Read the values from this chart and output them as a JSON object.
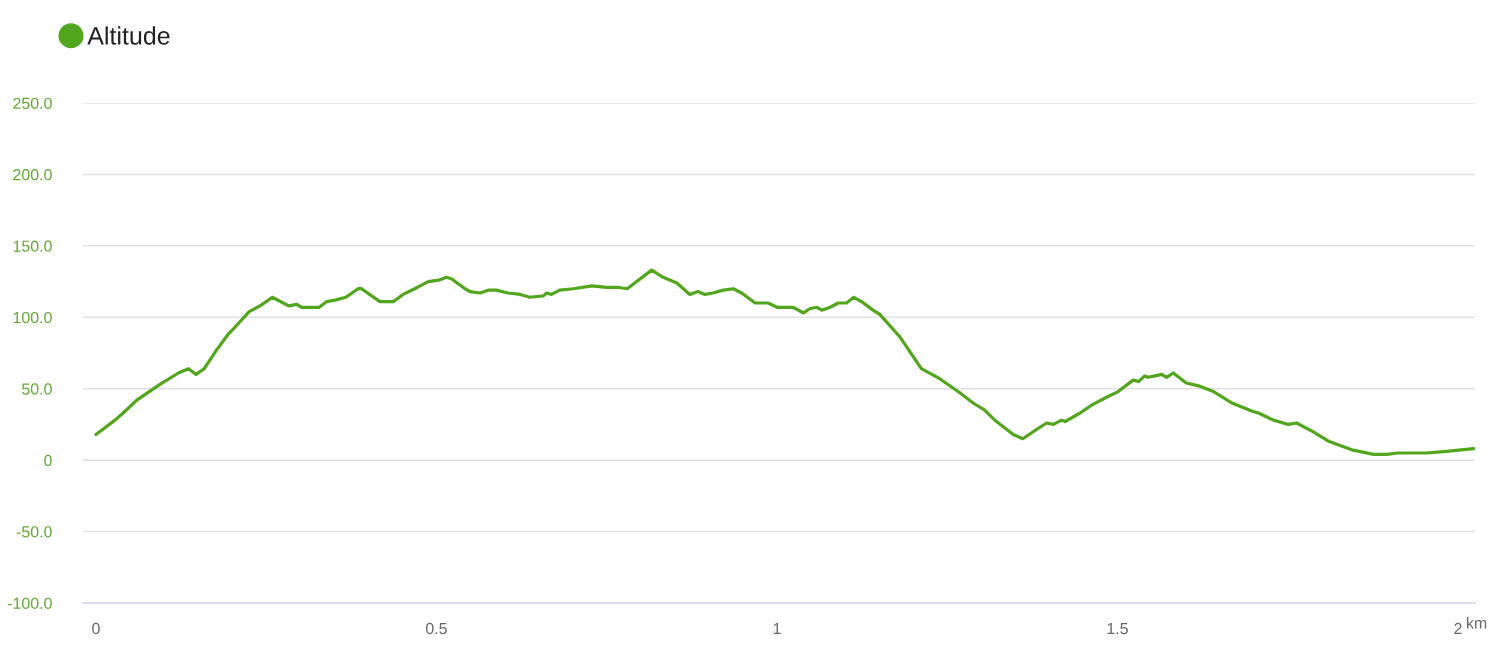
{
  "chart_data": {
    "type": "line",
    "xlabel": "km",
    "x": [
      0.0,
      0.028,
      0.04,
      0.06,
      0.094,
      0.121,
      0.136,
      0.147,
      0.159,
      0.177,
      0.194,
      0.204,
      0.225,
      0.241,
      0.259,
      0.283,
      0.295,
      0.302,
      0.315,
      0.328,
      0.339,
      0.351,
      0.367,
      0.385,
      0.39,
      0.417,
      0.437,
      0.451,
      0.468,
      0.488,
      0.503,
      0.515,
      0.522,
      0.539,
      0.549,
      0.564,
      0.576,
      0.588,
      0.605,
      0.623,
      0.637,
      0.657,
      0.662,
      0.669,
      0.681,
      0.701,
      0.728,
      0.75,
      0.765,
      0.78,
      0.816,
      0.833,
      0.853,
      0.872,
      0.884,
      0.894,
      0.906,
      0.921,
      0.936,
      0.948,
      0.968,
      0.987,
      1.0,
      1.024,
      1.039,
      1.048,
      1.058,
      1.066,
      1.078,
      1.09,
      1.102,
      1.113,
      1.124,
      1.141,
      1.151,
      1.181,
      1.212,
      1.239,
      1.269,
      1.288,
      1.305,
      1.32,
      1.347,
      1.361,
      1.386,
      1.396,
      1.406,
      1.418,
      1.423,
      1.445,
      1.464,
      1.484,
      1.501,
      1.523,
      1.531,
      1.54,
      1.545,
      1.555,
      1.565,
      1.572,
      1.582,
      1.601,
      1.619,
      1.641,
      1.668,
      1.699,
      1.707,
      1.729,
      1.751,
      1.763,
      1.787,
      1.811,
      1.846,
      1.876,
      1.895,
      1.912,
      1.954,
      1.979,
      2.023
    ],
    "series": [
      {
        "name": "Altitude",
        "color": "#52a61e",
        "values": [
          18,
          28,
          33,
          42,
          53,
          61,
          64,
          60,
          64,
          77,
          88,
          93,
          104,
          108,
          114,
          108,
          109,
          107,
          107,
          107,
          111,
          112,
          114,
          120,
          120,
          111,
          111,
          116,
          120,
          125,
          126,
          128,
          127,
          121,
          118,
          117,
          119,
          119,
          117,
          116,
          114,
          115,
          117,
          116,
          119,
          120,
          122,
          121,
          121,
          120,
          133,
          128,
          124,
          116,
          118,
          116,
          117,
          119,
          120,
          117,
          110,
          110,
          107,
          107,
          103,
          106,
          107,
          105,
          107,
          110,
          110,
          114,
          111,
          105,
          102,
          86,
          64,
          57,
          47,
          40,
          35,
          28,
          18,
          15,
          23,
          26,
          25,
          28,
          27,
          33,
          39,
          44,
          48,
          56,
          55,
          59,
          58,
          59,
          60,
          58,
          61,
          54,
          52,
          48,
          40,
          34,
          33,
          28,
          25,
          26,
          20,
          13,
          7,
          4,
          4,
          5,
          5,
          6,
          8
        ]
      }
    ],
    "xlim": [
      -0.019,
      2.025
    ],
    "xticks": [
      0,
      0.5,
      1,
      1.5,
      2
    ],
    "ylim": [
      -100,
      250
    ],
    "yticks": [
      {
        "value": -100,
        "label": "-100.0"
      },
      {
        "value": -50,
        "label": "-50.0"
      },
      0,
      {
        "value": 50,
        "label": "50.0"
      },
      {
        "value": 100,
        "label": "100.0"
      },
      {
        "value": 150,
        "label": "150.0"
      },
      {
        "value": 200,
        "label": "200.0"
      },
      {
        "value": 250,
        "label": "250.0"
      }
    ],
    "grid": "y",
    "legend": "top left"
  }
}
